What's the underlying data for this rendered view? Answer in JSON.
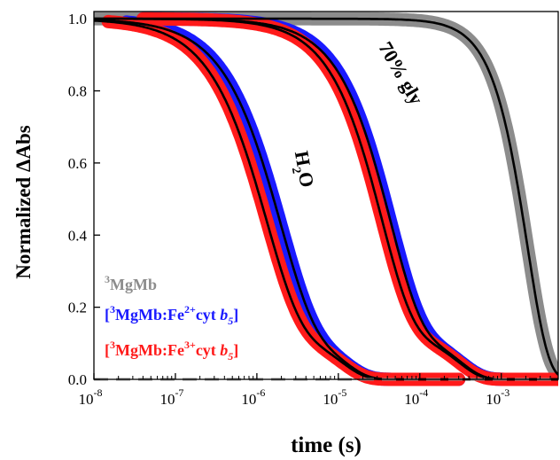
{
  "chart_data": {
    "type": "scatter",
    "title": "",
    "xlabel": "time (s)",
    "ylabel": "Normalized ΔAbs",
    "xscale": "log",
    "xlim": [
      1e-08,
      0.005
    ],
    "ylim": [
      0.0,
      1.02
    ],
    "yticks": [
      "0.0",
      "0.2",
      "0.4",
      "0.6",
      "0.8",
      "1.0"
    ],
    "xticks": [
      {
        "value": 1e-08,
        "base": "10",
        "exp": "-8"
      },
      {
        "value": 1e-07,
        "base": "10",
        "exp": "-7"
      },
      {
        "value": 1e-06,
        "base": "10",
        "exp": "-6"
      },
      {
        "value": 1e-05,
        "base": "10",
        "exp": "-5"
      },
      {
        "value": 0.0001,
        "base": "10",
        "exp": "-4"
      },
      {
        "value": 0.001,
        "base": "10",
        "exp": "-3"
      }
    ],
    "grid": false,
    "legend_position": "lower-left",
    "legend": [
      {
        "prefix": "",
        "sup1": "3",
        "main": "MgMb",
        "sup2": "",
        "tail": "",
        "italic": "",
        "sub": "",
        "close": "",
        "color": "#8c8c8c"
      },
      {
        "prefix": "[",
        "sup1": "3",
        "main": "MgMb:Fe",
        "sup2": "2+",
        "tail": "cyt ",
        "italic": "b",
        "sub": "5",
        "close": "]",
        "color": "#1a1aff"
      },
      {
        "prefix": "[",
        "sup1": "3",
        "main": "MgMb:Fe",
        "sup2": "3+",
        "tail": "cyt ",
        "italic": "b",
        "sub": "5",
        "close": "]",
        "color": "#ff1a1a"
      }
    ],
    "annotations": [
      {
        "text": "70% gly",
        "x": 5e-05,
        "y": 0.84,
        "rotation": 60
      },
      {
        "text": "H",
        "sub": "2",
        "tail": "O",
        "x": 3.2e-06,
        "y": 0.58,
        "rotation": 80
      }
    ],
    "colors": {
      "gray": "#8c8c8c",
      "blue": "#1a1aff",
      "red": "#ff1a1a",
      "fit": "#000000"
    },
    "series": [
      {
        "name": "3MgMb",
        "color": "#8c8c8c",
        "components": [
          {
            "a": 1.0,
            "tau": 0.0021,
            "beta": 1.7
          }
        ],
        "xmin": 1e-08,
        "xmax": 0.005
      },
      {
        "name": "[3MgMb:Fe2+cyt b5] H2O",
        "color": "#1a1aff",
        "components": [
          {
            "a": 0.87,
            "tau": 1.9e-06,
            "beta": 1.05
          },
          {
            "a": 0.13,
            "tau": 1.2e-05,
            "beta": 1.5
          }
        ],
        "xmin": 2.5e-08,
        "xmax": 0.0003
      },
      {
        "name": "[3MgMb:Fe3+cyt b5] H2O",
        "color": "#ff1a1a",
        "components": [
          {
            "a": 0.87,
            "tau": 1.3e-06,
            "beta": 1.05
          },
          {
            "a": 0.13,
            "tau": 1.1e-05,
            "beta": 1.5
          }
        ],
        "xmin": 1.5e-08,
        "xmax": 0.0003
      },
      {
        "name": "[3MgMb:Fe2+cyt b5] 70% gly",
        "color": "#1a1aff",
        "components": [
          {
            "a": 0.87,
            "tau": 4.3e-05,
            "beta": 1.15
          },
          {
            "a": 0.13,
            "tau": 0.00032,
            "beta": 1.6
          }
        ],
        "xmin": 4e-08,
        "xmax": 0.005
      },
      {
        "name": "[3MgMb:Fe3+cyt b5] 70% gly",
        "color": "#ff1a1a",
        "components": [
          {
            "a": 0.87,
            "tau": 3.4e-05,
            "beta": 1.15
          },
          {
            "a": 0.13,
            "tau": 0.0003,
            "beta": 1.6
          }
        ],
        "xmin": 4e-08,
        "xmax": 0.005
      }
    ],
    "baseline": {
      "y": 0.0,
      "style": "dashed",
      "color": "#8c8c8c"
    }
  }
}
